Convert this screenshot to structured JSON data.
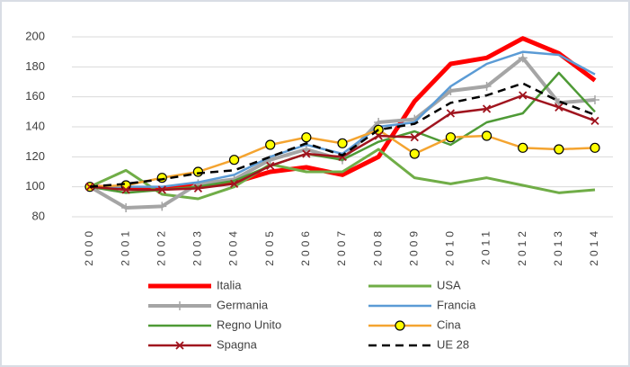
{
  "chart_data": {
    "type": "line",
    "categories": [
      "2000",
      "2001",
      "2002",
      "2003",
      "2004",
      "2005",
      "2006",
      "2007",
      "2008",
      "2009",
      "2010",
      "2011",
      "2012",
      "2013",
      "2014"
    ],
    "ylim": [
      80,
      200
    ],
    "yticks": [
      80,
      100,
      120,
      140,
      160,
      180,
      200
    ],
    "grid": true,
    "legend": "bottom",
    "series": [
      {
        "name": "Italia",
        "color": "#ff0000",
        "width": 5,
        "values": [
          100,
          99,
          99,
          101,
          103,
          110,
          113,
          108,
          120,
          157,
          182,
          186,
          199,
          189,
          171
        ]
      },
      {
        "name": "USA",
        "color": "#70ad47",
        "width": 3,
        "values": [
          100,
          111,
          95,
          92,
          100,
          115,
          110,
          110,
          125,
          106,
          102,
          106,
          101,
          96,
          98
        ]
      },
      {
        "name": "Germania",
        "color": "#a5a5a5",
        "width": 4,
        "marker": "plus",
        "values": [
          100,
          86,
          87,
          102,
          105,
          118,
          125,
          118,
          143,
          145,
          164,
          167,
          186,
          156,
          158
        ]
      },
      {
        "name": "Francia",
        "color": "#5b9bd5",
        "width": 2.5,
        "values": [
          100,
          100,
          100,
          103,
          108,
          120,
          128,
          122,
          140,
          143,
          167,
          182,
          190,
          188,
          175
        ]
      },
      {
        "name": "Regno Unito",
        "color": "#4e9a36",
        "width": 2.5,
        "values": [
          100,
          96,
          98,
          100,
          104,
          114,
          122,
          118,
          130,
          137,
          128,
          143,
          149,
          176,
          150
        ]
      },
      {
        "name": "Cina",
        "color": "#f4a430",
        "width": 2.5,
        "marker": "circle",
        "values": [
          100,
          101,
          106,
          110,
          118,
          128,
          133,
          129,
          138,
          122,
          133,
          134,
          126,
          125,
          126
        ]
      },
      {
        "name": "Spagna",
        "color": "#a0141e",
        "width": 2.5,
        "marker": "cross",
        "values": [
          100,
          98,
          98,
          99,
          102,
          114,
          122,
          120,
          134,
          133,
          149,
          152,
          161,
          153,
          144
        ]
      },
      {
        "name": "UE 28",
        "color": "#000000",
        "width": 2.5,
        "dash": true,
        "values": [
          100,
          102,
          105,
          109,
          111,
          120,
          129,
          121,
          138,
          142,
          156,
          161,
          169,
          157,
          148
        ]
      }
    ]
  }
}
